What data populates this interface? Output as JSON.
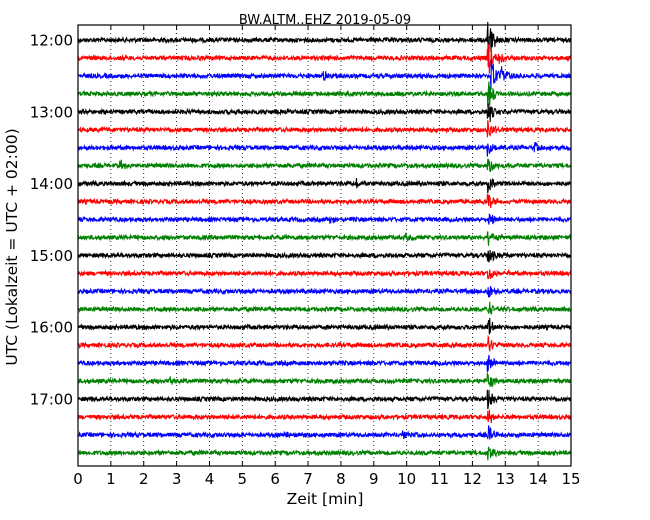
{
  "chart_data": {
    "type": "line",
    "title": "BW.ALTM..EHZ 2019-05-09",
    "xlabel": "Zeit  [min]",
    "ylabel": "UTC (Lokalzeit = UTC + 02:00)",
    "xlim": [
      0,
      15
    ],
    "x_ticks": [
      0,
      1,
      2,
      3,
      4,
      5,
      6,
      7,
      8,
      9,
      10,
      11,
      12,
      13,
      14,
      15
    ],
    "x_tick_labels": [
      "0",
      "1",
      "2",
      "3",
      "4",
      "5",
      "6",
      "7",
      "8",
      "9",
      "10",
      "11",
      "12",
      "13",
      "14",
      "15"
    ],
    "y_tick_labels": [
      "12:00",
      "13:00",
      "14:00",
      "15:00",
      "16:00",
      "17:00"
    ],
    "trace_interval_minutes": 15,
    "grid": true,
    "trace_colors": [
      "#000000",
      "#ff0000",
      "#0000ff",
      "#008000"
    ],
    "traces": [
      {
        "start": "12:00",
        "events": [
          {
            "x": 12.5,
            "amp": 20
          }
        ]
      },
      {
        "start": "12:15",
        "events": [
          {
            "x": 12.5,
            "amp": 18
          },
          {
            "x": 12.8,
            "amp": 6
          }
        ]
      },
      {
        "start": "12:30",
        "events": [
          {
            "x": 7.5,
            "amp": 5
          },
          {
            "x": 12.6,
            "amp": 18
          },
          {
            "x": 12.9,
            "amp": 9
          }
        ]
      },
      {
        "start": "12:45",
        "events": [
          {
            "x": 12.5,
            "amp": 15
          }
        ]
      },
      {
        "start": "13:00",
        "events": [
          {
            "x": 12.5,
            "amp": 12
          }
        ]
      },
      {
        "start": "13:15",
        "events": [
          {
            "x": 12.5,
            "amp": 10
          }
        ]
      },
      {
        "start": "13:30",
        "events": [
          {
            "x": 12.5,
            "amp": 10
          },
          {
            "x": 13.9,
            "amp": 6
          }
        ]
      },
      {
        "start": "13:45",
        "events": [
          {
            "x": 1.3,
            "amp": 5
          },
          {
            "x": 12.5,
            "amp": 10
          }
        ]
      },
      {
        "start": "14:00",
        "events": [
          {
            "x": 8.5,
            "amp": 5
          },
          {
            "x": 12.5,
            "amp": 9
          }
        ]
      },
      {
        "start": "14:15",
        "events": [
          {
            "x": 12.5,
            "amp": 8
          }
        ]
      },
      {
        "start": "14:30",
        "events": [
          {
            "x": 7.7,
            "amp": 4
          },
          {
            "x": 12.5,
            "amp": 8
          }
        ]
      },
      {
        "start": "14:45",
        "events": [
          {
            "x": 10.0,
            "amp": 5
          },
          {
            "x": 12.5,
            "amp": 8
          }
        ]
      },
      {
        "start": "15:00",
        "events": [
          {
            "x": 12.5,
            "amp": 8
          }
        ]
      },
      {
        "start": "15:15",
        "events": [
          {
            "x": 12.5,
            "amp": 8
          }
        ]
      },
      {
        "start": "15:30",
        "events": [
          {
            "x": 12.5,
            "amp": 9
          }
        ]
      },
      {
        "start": "15:45",
        "events": [
          {
            "x": 12.5,
            "amp": 9
          }
        ]
      },
      {
        "start": "16:00",
        "events": [
          {
            "x": 12.5,
            "amp": 9
          }
        ]
      },
      {
        "start": "16:15",
        "events": [
          {
            "x": 12.5,
            "amp": 9
          }
        ]
      },
      {
        "start": "16:30",
        "events": [
          {
            "x": 12.5,
            "amp": 9
          }
        ]
      },
      {
        "start": "16:45",
        "events": [
          {
            "x": 2.8,
            "amp": 4
          },
          {
            "x": 12.5,
            "amp": 9
          }
        ]
      },
      {
        "start": "17:00",
        "events": [
          {
            "x": 12.5,
            "amp": 9
          }
        ]
      },
      {
        "start": "17:15",
        "events": [
          {
            "x": 12.5,
            "amp": 9
          }
        ]
      },
      {
        "start": "17:30",
        "events": [
          {
            "x": 6.3,
            "amp": 3
          },
          {
            "x": 9.9,
            "amp": 3
          },
          {
            "x": 12.5,
            "amp": 9
          }
        ]
      },
      {
        "start": "17:45",
        "events": [
          {
            "x": 12.5,
            "amp": 9
          }
        ]
      }
    ]
  }
}
